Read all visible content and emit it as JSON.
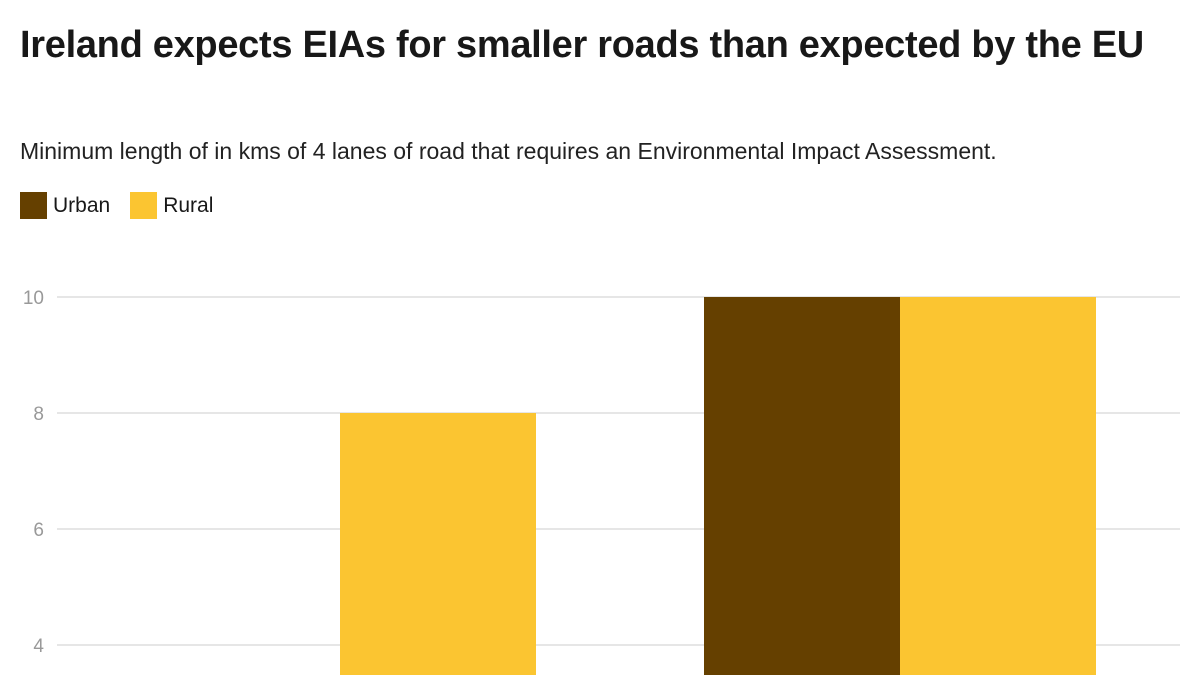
{
  "chart_data": {
    "type": "bar",
    "title": "Ireland expects EIAs for smaller roads than expected by the EU",
    "subtitle": "Minimum length of in kms of 4 lanes of road that requires an Environmental Impact Assessment.",
    "xlabel": "",
    "ylabel": "",
    "ylim": [
      0,
      10
    ],
    "yticks": [
      "4",
      "6",
      "8",
      "10"
    ],
    "ytick_values": [
      4,
      6,
      8,
      10
    ],
    "grid": true,
    "legend": "top-left",
    "series": [
      {
        "name": "Urban",
        "color": "#654000",
        "values": [
          null,
          10
        ]
      },
      {
        "name": "Rural",
        "color": "#FBC531",
        "values": [
          8,
          10
        ]
      }
    ]
  }
}
